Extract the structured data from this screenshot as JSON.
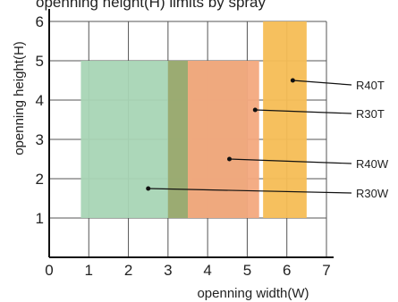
{
  "chart_data": {
    "type": "area",
    "title_partial": "openning height(H)",
    "title": "",
    "xlabel": "openning width(W)",
    "ylabel": "openning height(H)",
    "xlim": [
      0,
      7
    ],
    "ylim": [
      0,
      6
    ],
    "x_ticks": [
      "0",
      "1",
      "2",
      "3",
      "4",
      "5",
      "6",
      "7"
    ],
    "y_ticks": [
      "1",
      "2",
      "3",
      "4",
      "5",
      "6"
    ],
    "grid": true,
    "series": [
      {
        "name": "R30W",
        "x_range": [
          0.8,
          3.6
        ],
        "y_range": [
          1,
          5
        ],
        "color": "#a8d5b5"
      },
      {
        "name": "R40W",
        "x_range": [
          3.0,
          5.0
        ],
        "y_range": [
          1,
          5
        ],
        "color": "#9aa96e"
      },
      {
        "name": "R30T",
        "x_range": [
          3.5,
          5.3
        ],
        "y_range": [
          1,
          5
        ],
        "color": "#f3a97e"
      },
      {
        "name": "R40T",
        "x_range": [
          5.4,
          6.5
        ],
        "y_range": [
          1,
          6
        ],
        "color": "#f6bd55"
      }
    ],
    "label_points": [
      {
        "series": "R40T",
        "x": 6.15,
        "y": 4.5
      },
      {
        "series": "R30T",
        "x": 5.2,
        "y": 3.75
      },
      {
        "series": "R40W",
        "x": 4.55,
        "y": 2.5
      },
      {
        "series": "R30W",
        "x": 2.5,
        "y": 1.75
      }
    ]
  }
}
